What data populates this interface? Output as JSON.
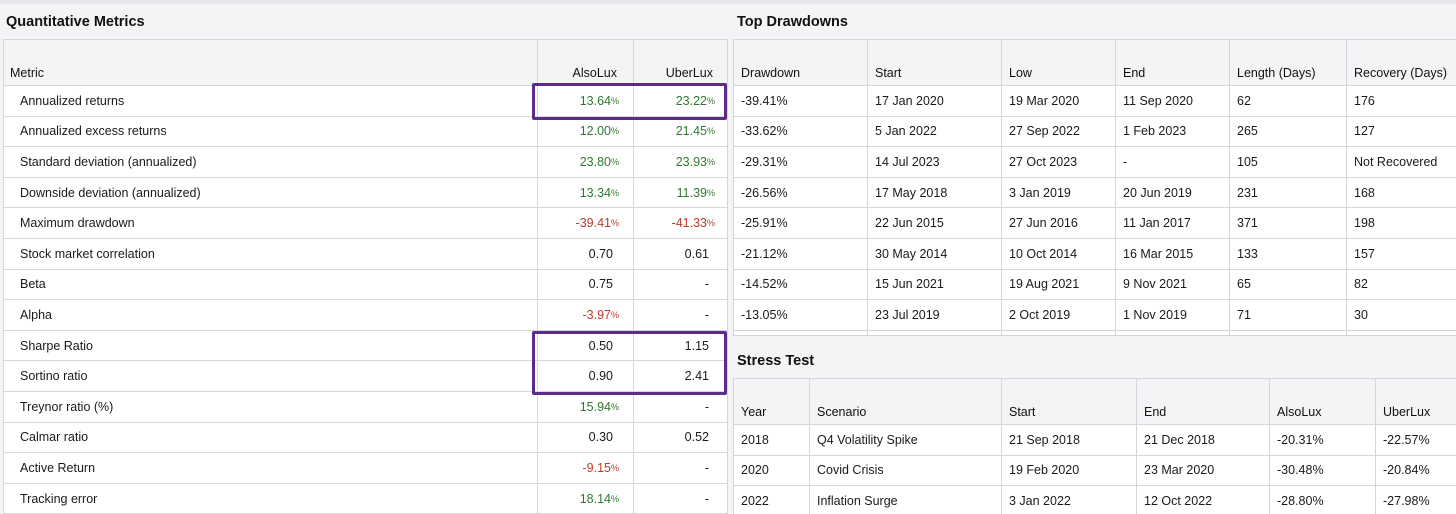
{
  "metrics": {
    "title": "Quantitative Metrics",
    "headers": {
      "metric": "Metric",
      "a": "AlsoLux",
      "b": "UberLux"
    },
    "rows": [
      {
        "label": "Annualized returns",
        "a": "13.64",
        "a_pct": "%",
        "a_tone": "pos",
        "b": "23.22",
        "b_pct": "%",
        "b_tone": "pos"
      },
      {
        "label": "Annualized excess returns",
        "a": "12.00",
        "a_pct": "%",
        "a_tone": "pos",
        "b": "21.45",
        "b_pct": "%",
        "b_tone": "pos"
      },
      {
        "label": "Standard deviation (annualized)",
        "a": "23.80",
        "a_pct": "%",
        "a_tone": "pos",
        "b": "23.93",
        "b_pct": "%",
        "b_tone": "pos"
      },
      {
        "label": "Downside deviation (annualized)",
        "a": "13.34",
        "a_pct": "%",
        "a_tone": "pos",
        "b": "11.39",
        "b_pct": "%",
        "b_tone": "pos"
      },
      {
        "label": "Maximum drawdown",
        "a": "-39.41",
        "a_pct": "%",
        "a_tone": "neg",
        "b": "-41.33",
        "b_pct": "%",
        "b_tone": "neg"
      },
      {
        "label": "Stock market correlation",
        "a": "0.70",
        "a_pct": "",
        "a_tone": "plain",
        "b": "0.61",
        "b_pct": "",
        "b_tone": "plain"
      },
      {
        "label": "Beta",
        "a": "0.75",
        "a_pct": "",
        "a_tone": "plain",
        "b": "-",
        "b_pct": "",
        "b_tone": "plain"
      },
      {
        "label": "Alpha",
        "a": "-3.97",
        "a_pct": "%",
        "a_tone": "neg",
        "b": "-",
        "b_pct": "",
        "b_tone": "plain"
      },
      {
        "label": "Sharpe Ratio",
        "a": "0.50",
        "a_pct": "",
        "a_tone": "plain",
        "b": "1.15",
        "b_pct": "",
        "b_tone": "plain"
      },
      {
        "label": "Sortino ratio",
        "a": "0.90",
        "a_pct": "",
        "a_tone": "plain",
        "b": "2.41",
        "b_pct": "",
        "b_tone": "plain"
      },
      {
        "label": "Treynor ratio (%)",
        "a": "15.94",
        "a_pct": "%",
        "a_tone": "pos",
        "b": "-",
        "b_pct": "",
        "b_tone": "plain"
      },
      {
        "label": "Calmar ratio",
        "a": "0.30",
        "a_pct": "",
        "a_tone": "plain",
        "b": "0.52",
        "b_pct": "",
        "b_tone": "plain"
      },
      {
        "label": "Active Return",
        "a": "-9.15",
        "a_pct": "%",
        "a_tone": "neg",
        "b": "-",
        "b_pct": "",
        "b_tone": "plain"
      },
      {
        "label": "Tracking error",
        "a": "18.14",
        "a_pct": "%",
        "a_tone": "pos",
        "b": "-",
        "b_pct": "",
        "b_tone": "plain"
      }
    ]
  },
  "drawdowns": {
    "title": "Top Drawdowns",
    "headers": [
      "Drawdown",
      "Start",
      "Low",
      "End",
      "Length (Days)",
      "Recovery (Days)"
    ],
    "rows": [
      [
        "-39.41%",
        "17 Jan 2020",
        "19 Mar 2020",
        "11 Sep 2020",
        "62",
        "176"
      ],
      [
        "-33.62%",
        "5 Jan 2022",
        "27 Sep 2022",
        "1 Feb 2023",
        "265",
        "127"
      ],
      [
        "-29.31%",
        "14 Jul 2023",
        "27 Oct 2023",
        "-",
        "105",
        "Not Recovered"
      ],
      [
        "-26.56%",
        "17 May 2018",
        "3 Jan 2019",
        "20 Jun 2019",
        "231",
        "168"
      ],
      [
        "-25.91%",
        "22 Jun 2015",
        "27 Jun 2016",
        "11 Jan 2017",
        "371",
        "198"
      ],
      [
        "-21.12%",
        "30 May 2014",
        "10 Oct 2014",
        "16 Mar 2015",
        "133",
        "157"
      ],
      [
        "-14.52%",
        "15 Jun 2021",
        "19 Aug 2021",
        "9 Nov 2021",
        "65",
        "82"
      ],
      [
        "-13.05%",
        "23 Jul 2019",
        "2 Oct 2019",
        "1 Nov 2019",
        "71",
        "30"
      ]
    ]
  },
  "stress": {
    "title": "Stress Test",
    "headers": [
      "Year",
      "Scenario",
      "Start",
      "End",
      "AlsoLux",
      "UberLux"
    ],
    "rows": [
      [
        "2018",
        "Q4 Volatility Spike",
        "21 Sep 2018",
        "21 Dec 2018",
        "-20.31%",
        "-22.57%"
      ],
      [
        "2020",
        "Covid Crisis",
        "19 Feb 2020",
        "23 Mar 2020",
        "-30.48%",
        "-20.84%"
      ],
      [
        "2022",
        "Inflation Surge",
        "3 Jan 2022",
        "12 Oct 2022",
        "-28.80%",
        "-27.98%"
      ]
    ]
  },
  "colors": {
    "positive": "#2f7a2f",
    "negative": "#c0392b",
    "highlight": "#5b2c8a"
  }
}
